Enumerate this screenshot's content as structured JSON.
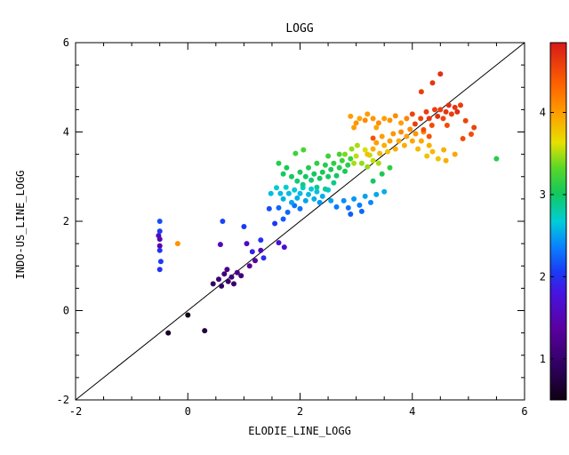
{
  "figure": {
    "title": "LOGG",
    "xlabel": "ELODIE_LINE_LOGG",
    "ylabel": "INDO-US_LINE_LOGG"
  },
  "chart_data": {
    "type": "scatter",
    "title": "LOGG",
    "xlabel": "ELODIE_LINE_LOGG",
    "ylabel": "INDO-US_LINE_LOGG",
    "xlim": [
      -2,
      6
    ],
    "ylim": [
      -2,
      6
    ],
    "xticks": [
      -2,
      0,
      2,
      4,
      6
    ],
    "yticks": [
      -2,
      0,
      2,
      4,
      6
    ],
    "minor_tick_step": 0.5,
    "grid": false,
    "background": "#ffffff",
    "axis_color": "#000000",
    "identity_line": {
      "x": [
        -2,
        6
      ],
      "y": [
        -2,
        6
      ],
      "color": "#000000"
    },
    "marker": {
      "shape": "filled-circle",
      "radius_px": 3
    },
    "colorbar": {
      "position": "right",
      "min": 0.5,
      "max": 4.85,
      "ticks": [
        1,
        2,
        3,
        4
      ],
      "colormap": "rainbow",
      "stops": [
        [
          0.0,
          [
            15,
            0,
            20
          ]
        ],
        [
          0.1,
          [
            50,
            0,
            100
          ]
        ],
        [
          0.2,
          [
            90,
            0,
            160
          ]
        ],
        [
          0.3,
          [
            70,
            20,
            225
          ]
        ],
        [
          0.36,
          [
            25,
            60,
            245
          ]
        ],
        [
          0.43,
          [
            10,
            130,
            255
          ]
        ],
        [
          0.5,
          [
            0,
            205,
            215
          ]
        ],
        [
          0.58,
          [
            20,
            200,
            90
          ]
        ],
        [
          0.65,
          [
            90,
            215,
            40
          ]
        ],
        [
          0.72,
          [
            230,
            225,
            0
          ]
        ],
        [
          0.8,
          [
            255,
            160,
            0
          ]
        ],
        [
          0.88,
          [
            255,
            100,
            0
          ]
        ],
        [
          1.0,
          [
            215,
            25,
            25
          ]
        ]
      ]
    },
    "points": [
      [
        -0.35,
        -0.5,
        0.6
      ],
      [
        0.3,
        -0.45,
        0.75
      ],
      [
        0.0,
        -0.1,
        0.55
      ],
      [
        0.45,
        0.6,
        0.95
      ],
      [
        0.55,
        0.7,
        1.05
      ],
      [
        0.6,
        0.55,
        0.95
      ],
      [
        0.65,
        0.82,
        1.1
      ],
      [
        0.72,
        0.65,
        1.0
      ],
      [
        0.78,
        0.75,
        1.1
      ],
      [
        0.82,
        0.6,
        1.0
      ],
      [
        0.88,
        0.85,
        1.15
      ],
      [
        0.95,
        0.78,
        1.1
      ],
      [
        0.7,
        0.92,
        1.2
      ],
      [
        1.1,
        1.0,
        1.3
      ],
      [
        1.2,
        1.12,
        1.35
      ],
      [
        -0.5,
        1.6,
        1.5
      ],
      [
        -0.52,
        1.68,
        1.55
      ],
      [
        -0.5,
        1.45,
        1.45
      ],
      [
        1.05,
        1.5,
        1.6
      ],
      [
        1.3,
        1.35,
        1.55
      ],
      [
        0.58,
        1.48,
        1.55
      ],
      [
        1.62,
        1.52,
        1.7
      ],
      [
        1.72,
        1.42,
        1.65
      ],
      [
        -0.5,
        2.0,
        2.15
      ],
      [
        -0.5,
        1.78,
        2.05
      ],
      [
        -0.5,
        1.35,
        2.0
      ],
      [
        -0.48,
        1.1,
        2.05
      ],
      [
        -0.5,
        0.92,
        2.0
      ],
      [
        -0.18,
        1.5,
        4.05
      ],
      [
        0.62,
        2.0,
        2.1
      ],
      [
        1.0,
        1.88,
        2.05
      ],
      [
        1.3,
        1.58,
        2.0
      ],
      [
        1.45,
        2.28,
        2.15
      ],
      [
        1.55,
        1.95,
        2.05
      ],
      [
        1.35,
        1.18,
        1.95
      ],
      [
        1.15,
        1.32,
        1.9
      ],
      [
        1.62,
        2.3,
        2.25
      ],
      [
        1.78,
        2.2,
        2.25
      ],
      [
        1.9,
        2.35,
        2.3
      ],
      [
        2.0,
        2.28,
        2.3
      ],
      [
        1.7,
        2.05,
        2.2
      ],
      [
        1.7,
        2.5,
        2.55
      ],
      [
        1.8,
        2.62,
        2.6
      ],
      [
        1.85,
        2.42,
        2.5
      ],
      [
        1.9,
        2.7,
        2.65
      ],
      [
        1.95,
        2.52,
        2.55
      ],
      [
        2.0,
        2.62,
        2.6
      ],
      [
        2.05,
        2.75,
        2.7
      ],
      [
        2.1,
        2.46,
        2.5
      ],
      [
        2.15,
        2.6,
        2.6
      ],
      [
        2.2,
        2.72,
        2.65
      ],
      [
        2.25,
        2.5,
        2.55
      ],
      [
        2.3,
        2.66,
        2.62
      ],
      [
        2.4,
        2.56,
        2.55
      ],
      [
        2.5,
        2.7,
        2.65
      ],
      [
        2.35,
        2.42,
        2.45
      ],
      [
        2.55,
        2.46,
        2.5
      ],
      [
        1.75,
        2.76,
        2.7
      ],
      [
        1.65,
        2.62,
        2.6
      ],
      [
        1.58,
        2.75,
        2.72
      ],
      [
        1.48,
        2.62,
        2.6
      ],
      [
        2.65,
        2.32,
        2.35
      ],
      [
        2.78,
        2.46,
        2.42
      ],
      [
        2.86,
        2.3,
        2.32
      ],
      [
        2.96,
        2.5,
        2.45
      ],
      [
        3.06,
        2.36,
        2.35
      ],
      [
        3.16,
        2.56,
        2.5
      ],
      [
        3.26,
        2.42,
        2.4
      ],
      [
        3.36,
        2.6,
        2.52
      ],
      [
        3.5,
        2.66,
        2.55
      ],
      [
        2.9,
        2.16,
        2.2
      ],
      [
        3.1,
        2.22,
        2.25
      ],
      [
        1.85,
        3.0,
        3.0
      ],
      [
        1.95,
        2.9,
        2.95
      ],
      [
        2.0,
        3.1,
        3.05
      ],
      [
        2.05,
        2.82,
        2.9
      ],
      [
        2.1,
        3.0,
        3.0
      ],
      [
        2.15,
        3.2,
        3.1
      ],
      [
        2.2,
        2.92,
        2.95
      ],
      [
        2.25,
        3.06,
        3.0
      ],
      [
        2.3,
        3.3,
        3.15
      ],
      [
        2.35,
        2.96,
        3.0
      ],
      [
        2.4,
        3.1,
        3.05
      ],
      [
        2.45,
        3.26,
        3.1
      ],
      [
        2.5,
        3.0,
        3.0
      ],
      [
        2.55,
        3.16,
        3.05
      ],
      [
        2.6,
        3.3,
        3.15
      ],
      [
        2.65,
        3.02,
        3.0
      ],
      [
        2.7,
        3.2,
        3.1
      ],
      [
        2.75,
        3.36,
        3.2
      ],
      [
        2.8,
        3.12,
        3.05
      ],
      [
        2.85,
        3.26,
        3.1
      ],
      [
        2.9,
        3.4,
        3.2
      ],
      [
        2.6,
        2.86,
        2.9
      ],
      [
        2.45,
        2.72,
        2.85
      ],
      [
        2.3,
        2.76,
        2.85
      ],
      [
        2.7,
        3.5,
        3.25
      ],
      [
        2.5,
        3.46,
        3.2
      ],
      [
        1.7,
        3.06,
        3.0
      ],
      [
        1.62,
        3.3,
        3.1
      ],
      [
        1.76,
        3.2,
        3.05
      ],
      [
        1.92,
        3.52,
        3.2
      ],
      [
        2.06,
        3.6,
        3.25
      ],
      [
        3.3,
        2.9,
        3.0
      ],
      [
        3.46,
        3.06,
        3.05
      ],
      [
        3.6,
        3.2,
        3.15
      ],
      [
        2.8,
        3.5,
        3.4
      ],
      [
        2.92,
        3.62,
        3.45
      ],
      [
        3.02,
        3.7,
        3.5
      ],
      [
        3.1,
        3.3,
        3.45
      ],
      [
        3.2,
        3.22,
        3.45
      ],
      [
        3.3,
        3.36,
        3.55
      ],
      [
        3.0,
        3.46,
        3.55
      ],
      [
        2.96,
        3.3,
        3.5
      ],
      [
        3.16,
        3.6,
        3.6
      ],
      [
        3.4,
        3.3,
        3.5
      ],
      [
        3.24,
        3.48,
        3.55
      ],
      [
        3.2,
        3.5,
        3.8
      ],
      [
        3.3,
        3.62,
        3.9
      ],
      [
        3.36,
        3.76,
        4.0
      ],
      [
        3.42,
        3.52,
        3.85
      ],
      [
        3.46,
        3.9,
        4.0
      ],
      [
        3.5,
        3.7,
        3.9
      ],
      [
        3.56,
        3.56,
        3.8
      ],
      [
        3.6,
        3.8,
        4.0
      ],
      [
        3.66,
        3.96,
        4.05
      ],
      [
        3.7,
        3.62,
        3.9
      ],
      [
        3.76,
        3.8,
        3.95
      ],
      [
        3.8,
        4.0,
        4.1
      ],
      [
        3.86,
        3.7,
        3.9
      ],
      [
        3.9,
        3.9,
        4.0
      ],
      [
        3.96,
        4.06,
        4.1
      ],
      [
        4.0,
        3.8,
        3.95
      ],
      [
        4.06,
        3.96,
        4.05
      ],
      [
        4.1,
        3.62,
        3.85
      ],
      [
        4.16,
        3.8,
        3.95
      ],
      [
        4.2,
        4.0,
        4.1
      ],
      [
        4.26,
        3.46,
        3.8
      ],
      [
        4.36,
        3.56,
        3.85
      ],
      [
        4.46,
        3.4,
        3.8
      ],
      [
        4.56,
        3.6,
        3.9
      ],
      [
        4.3,
        3.7,
        3.9
      ],
      [
        4.6,
        3.36,
        3.9
      ],
      [
        4.76,
        3.5,
        3.95
      ],
      [
        2.9,
        4.35,
        4.0
      ],
      [
        3.0,
        4.2,
        4.05
      ],
      [
        3.06,
        4.3,
        3.95
      ],
      [
        3.16,
        4.26,
        4.1
      ],
      [
        3.2,
        4.4,
        4.0
      ],
      [
        3.3,
        4.3,
        4.05
      ],
      [
        3.4,
        4.2,
        4.1
      ],
      [
        3.5,
        4.3,
        4.0
      ],
      [
        3.6,
        4.26,
        4.05
      ],
      [
        3.7,
        4.36,
        4.1
      ],
      [
        3.8,
        4.2,
        4.0
      ],
      [
        3.9,
        4.3,
        4.15
      ],
      [
        3.36,
        4.1,
        3.95
      ],
      [
        2.96,
        4.1,
        4.0
      ],
      [
        4.05,
        4.18,
        4.6
      ],
      [
        4.15,
        4.3,
        4.55
      ],
      [
        4.2,
        4.05,
        4.5
      ],
      [
        4.25,
        4.45,
        4.6
      ],
      [
        4.3,
        4.3,
        4.65
      ],
      [
        4.35,
        4.15,
        4.5
      ],
      [
        4.4,
        4.5,
        4.6
      ],
      [
        4.45,
        4.35,
        4.7
      ],
      [
        4.5,
        4.5,
        4.6
      ],
      [
        4.55,
        4.3,
        4.55
      ],
      [
        4.6,
        4.45,
        4.65
      ],
      [
        4.62,
        4.15,
        4.5
      ],
      [
        4.65,
        4.6,
        4.7
      ],
      [
        4.7,
        4.4,
        4.6
      ],
      [
        4.76,
        4.55,
        4.65
      ],
      [
        4.8,
        4.45,
        4.7
      ],
      [
        4.86,
        4.6,
        4.6
      ],
      [
        4.5,
        5.3,
        4.7
      ],
      [
        4.36,
        5.1,
        4.65
      ],
      [
        4.95,
        4.25,
        4.55
      ],
      [
        5.05,
        3.95,
        4.5
      ],
      [
        4.9,
        3.85,
        4.5
      ],
      [
        4.16,
        4.9,
        4.6
      ],
      [
        4.0,
        4.4,
        4.55
      ],
      [
        3.3,
        3.86,
        4.45
      ],
      [
        4.3,
        3.9,
        4.45
      ],
      [
        5.1,
        4.1,
        4.55
      ],
      [
        5.5,
        3.4,
        3.1
      ]
    ]
  }
}
